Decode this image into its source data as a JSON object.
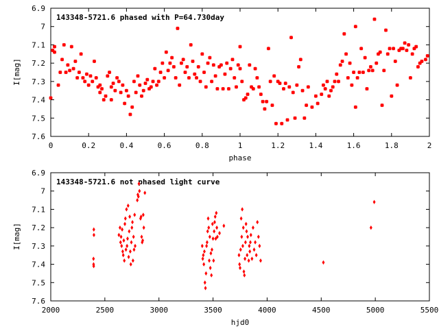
{
  "chart_data": [
    {
      "type": "scatter",
      "title": "143348-5721.6 phased with P=64.730day",
      "xlabel": "phase",
      "ylabel": "I[mag]",
      "xlim": [
        0,
        2
      ],
      "ylim": [
        6.9,
        7.6
      ],
      "y_inverted": true,
      "xticks": [
        "0",
        "0.2",
        "0.4",
        "0.6",
        "0.8",
        "1",
        "1.2",
        "1.4",
        "1.6",
        "1.8",
        "2"
      ],
      "yticks": [
        "6.9",
        "7",
        "7.1",
        "7.2",
        "7.3",
        "7.4",
        "7.5",
        "7.6"
      ],
      "marker_color": "#ff0000",
      "grid": false,
      "points": [
        [
          0.0,
          7.39
        ],
        [
          0.01,
          7.13
        ],
        [
          0.02,
          7.11
        ],
        [
          0.02,
          7.14
        ],
        [
          0.04,
          7.32
        ],
        [
          0.05,
          7.25
        ],
        [
          0.06,
          7.18
        ],
        [
          0.07,
          7.1
        ],
        [
          0.08,
          7.25
        ],
        [
          0.09,
          7.21
        ],
        [
          0.1,
          7.24
        ],
        [
          0.11,
          7.11
        ],
        [
          0.12,
          7.23
        ],
        [
          0.13,
          7.19
        ],
        [
          0.14,
          7.28
        ],
        [
          0.15,
          7.25
        ],
        [
          0.16,
          7.15
        ],
        [
          0.17,
          7.28
        ],
        [
          0.18,
          7.3
        ],
        [
          0.19,
          7.26
        ],
        [
          0.2,
          7.32
        ],
        [
          0.21,
          7.27
        ],
        [
          0.22,
          7.3
        ],
        [
          0.23,
          7.19
        ],
        [
          0.24,
          7.28
        ],
        [
          0.25,
          7.33
        ],
        [
          0.26,
          7.36
        ],
        [
          0.26,
          7.32
        ],
        [
          0.27,
          7.34
        ],
        [
          0.28,
          7.4
        ],
        [
          0.29,
          7.38
        ],
        [
          0.3,
          7.27
        ],
        [
          0.31,
          7.25
        ],
        [
          0.32,
          7.33
        ],
        [
          0.32,
          7.4
        ],
        [
          0.33,
          7.31
        ],
        [
          0.34,
          7.35
        ],
        [
          0.35,
          7.28
        ],
        [
          0.36,
          7.3
        ],
        [
          0.37,
          7.36
        ],
        [
          0.38,
          7.32
        ],
        [
          0.39,
          7.42
        ],
        [
          0.4,
          7.35
        ],
        [
          0.41,
          7.38
        ],
        [
          0.42,
          7.48
        ],
        [
          0.43,
          7.44
        ],
        [
          0.44,
          7.3
        ],
        [
          0.45,
          7.36
        ],
        [
          0.46,
          7.27
        ],
        [
          0.47,
          7.32
        ],
        [
          0.48,
          7.38
        ],
        [
          0.49,
          7.35
        ],
        [
          0.5,
          7.31
        ],
        [
          0.51,
          7.29
        ],
        [
          0.52,
          7.34
        ],
        [
          0.53,
          7.33
        ],
        [
          0.54,
          7.3
        ],
        [
          0.55,
          7.23
        ],
        [
          0.56,
          7.32
        ],
        [
          0.57,
          7.3
        ],
        [
          0.58,
          7.25
        ],
        [
          0.59,
          7.2
        ],
        [
          0.6,
          7.28
        ],
        [
          0.61,
          7.14
        ],
        [
          0.62,
          7.24
        ],
        [
          0.63,
          7.2
        ],
        [
          0.64,
          7.17
        ],
        [
          0.65,
          7.22
        ],
        [
          0.66,
          7.28
        ],
        [
          0.67,
          7.01
        ],
        [
          0.68,
          7.32
        ],
        [
          0.69,
          7.2
        ],
        [
          0.7,
          7.18
        ],
        [
          0.71,
          7.25
        ],
        [
          0.72,
          7.22
        ],
        [
          0.73,
          7.28
        ],
        [
          0.74,
          7.1
        ],
        [
          0.75,
          7.19
        ],
        [
          0.76,
          7.26
        ],
        [
          0.77,
          7.28
        ],
        [
          0.78,
          7.22
        ],
        [
          0.79,
          7.3
        ],
        [
          0.8,
          7.15
        ],
        [
          0.81,
          7.25
        ],
        [
          0.82,
          7.33
        ],
        [
          0.83,
          7.2
        ],
        [
          0.84,
          7.17
        ],
        [
          0.85,
          7.3
        ],
        [
          0.86,
          7.21
        ],
        [
          0.87,
          7.27
        ],
        [
          0.88,
          7.34
        ],
        [
          0.89,
          7.22
        ],
        [
          0.9,
          7.21
        ],
        [
          0.91,
          7.34
        ],
        [
          0.92,
          7.26
        ],
        [
          0.93,
          7.2
        ],
        [
          0.94,
          7.34
        ],
        [
          0.95,
          7.23
        ],
        [
          0.96,
          7.18
        ],
        [
          0.97,
          7.28
        ],
        [
          0.98,
          7.33
        ],
        [
          0.99,
          7.21
        ],
        [
          1.0,
          7.23
        ],
        [
          1.0,
          7.11
        ],
        [
          1.01,
          7.3
        ],
        [
          1.02,
          7.4
        ],
        [
          1.03,
          7.39
        ],
        [
          1.04,
          7.37
        ],
        [
          1.05,
          7.21
        ],
        [
          1.06,
          7.33
        ],
        [
          1.07,
          7.34
        ],
        [
          1.08,
          7.23
        ],
        [
          1.09,
          7.28
        ],
        [
          1.1,
          7.33
        ],
        [
          1.11,
          7.37
        ],
        [
          1.12,
          7.41
        ],
        [
          1.13,
          7.45
        ],
        [
          1.14,
          7.41
        ],
        [
          1.15,
          7.12
        ],
        [
          1.16,
          7.3
        ],
        [
          1.17,
          7.43
        ],
        [
          1.18,
          7.27
        ],
        [
          1.19,
          7.53
        ],
        [
          1.2,
          7.3
        ],
        [
          1.21,
          7.31
        ],
        [
          1.22,
          7.53
        ],
        [
          1.23,
          7.34
        ],
        [
          1.24,
          7.31
        ],
        [
          1.25,
          7.51
        ],
        [
          1.26,
          7.33
        ],
        [
          1.27,
          7.06
        ],
        [
          1.28,
          7.36
        ],
        [
          1.29,
          7.5
        ],
        [
          1.3,
          7.32
        ],
        [
          1.31,
          7.22
        ],
        [
          1.32,
          7.18
        ],
        [
          1.33,
          7.35
        ],
        [
          1.34,
          7.5
        ],
        [
          1.35,
          7.43
        ],
        [
          1.36,
          7.33
        ],
        [
          1.38,
          7.44
        ],
        [
          1.4,
          7.38
        ],
        [
          1.41,
          7.42
        ],
        [
          1.43,
          7.37
        ],
        [
          1.44,
          7.32
        ],
        [
          1.45,
          7.34
        ],
        [
          1.46,
          7.3
        ],
        [
          1.47,
          7.38
        ],
        [
          1.48,
          7.35
        ],
        [
          1.49,
          7.33
        ],
        [
          1.5,
          7.3
        ],
        [
          1.51,
          7.26
        ],
        [
          1.52,
          7.3
        ],
        [
          1.53,
          7.21
        ],
        [
          1.54,
          7.19
        ],
        [
          1.55,
          7.04
        ],
        [
          1.56,
          7.15
        ],
        [
          1.57,
          7.28
        ],
        [
          1.58,
          7.2
        ],
        [
          1.59,
          7.32
        ],
        [
          1.6,
          7.25
        ],
        [
          1.61,
          7.0
        ],
        [
          1.61,
          7.44
        ],
        [
          1.62,
          7.28
        ],
        [
          1.63,
          7.25
        ],
        [
          1.64,
          7.12
        ],
        [
          1.65,
          7.25
        ],
        [
          1.66,
          7.17
        ],
        [
          1.67,
          7.34
        ],
        [
          1.68,
          7.24
        ],
        [
          1.69,
          7.22
        ],
        [
          1.7,
          7.24
        ],
        [
          1.71,
          6.96
        ],
        [
          1.72,
          7.2
        ],
        [
          1.73,
          7.15
        ],
        [
          1.74,
          7.14
        ],
        [
          1.75,
          7.43
        ],
        [
          1.76,
          7.24
        ],
        [
          1.77,
          7.02
        ],
        [
          1.78,
          7.15
        ],
        [
          1.79,
          7.12
        ],
        [
          1.8,
          7.38
        ],
        [
          1.81,
          7.12
        ],
        [
          1.82,
          7.19
        ],
        [
          1.83,
          7.32
        ],
        [
          1.84,
          7.13
        ],
        [
          1.85,
          7.12
        ],
        [
          1.86,
          7.12
        ],
        [
          1.87,
          7.09
        ],
        [
          1.88,
          7.13
        ],
        [
          1.89,
          7.1
        ],
        [
          1.9,
          7.28
        ],
        [
          1.91,
          7.15
        ],
        [
          1.92,
          7.12
        ],
        [
          1.93,
          7.11
        ],
        [
          1.94,
          7.22
        ],
        [
          1.95,
          7.2
        ],
        [
          1.96,
          7.19
        ],
        [
          1.98,
          7.18
        ],
        [
          1.99,
          7.16
        ]
      ]
    },
    {
      "type": "scatter",
      "title": "143348-5721.6 not phased light curve",
      "xlabel": "hjd0",
      "ylabel": "I[mag]",
      "xlim": [
        2000,
        5500
      ],
      "ylim": [
        6.9,
        7.6
      ],
      "y_inverted": true,
      "xticks": [
        "2000",
        "2500",
        "3000",
        "3500",
        "4000",
        "4500",
        "5000",
        "5500"
      ],
      "yticks": [
        "6.9",
        "7",
        "7.1",
        "7.2",
        "7.3",
        "7.4",
        "7.5",
        "7.6"
      ],
      "marker_color": "#ff0000",
      "grid": false,
      "points": [
        [
          2395,
          7.37
        ],
        [
          2396,
          7.4
        ],
        [
          2398,
          7.21
        ],
        [
          2399,
          7.24
        ],
        [
          2397,
          7.41
        ],
        [
          2630,
          7.24
        ],
        [
          2640,
          7.2
        ],
        [
          2645,
          7.28
        ],
        [
          2650,
          7.25
        ],
        [
          2655,
          7.3
        ],
        [
          2660,
          7.21
        ],
        [
          2665,
          7.33
        ],
        [
          2670,
          7.35
        ],
        [
          2675,
          7.27
        ],
        [
          2680,
          7.38
        ],
        [
          2685,
          7.18
        ],
        [
          2690,
          7.15
        ],
        [
          2695,
          7.32
        ],
        [
          2700,
          7.1
        ],
        [
          2705,
          7.3
        ],
        [
          2710,
          7.26
        ],
        [
          2715,
          7.08
        ],
        [
          2720,
          7.36
        ],
        [
          2725,
          7.22
        ],
        [
          2730,
          7.14
        ],
        [
          2735,
          7.33
        ],
        [
          2740,
          7.4
        ],
        [
          2745,
          7.28
        ],
        [
          2750,
          7.2
        ],
        [
          2755,
          7.17
        ],
        [
          2760,
          7.38
        ],
        [
          2765,
          7.25
        ],
        [
          2770,
          7.32
        ],
        [
          2775,
          7.13
        ],
        [
          2780,
          7.3
        ],
        [
          2800,
          7.05
        ],
        [
          2805,
          7.02
        ],
        [
          2810,
          7.03
        ],
        [
          2815,
          6.96
        ],
        [
          2820,
          7.0
        ],
        [
          2830,
          7.15
        ],
        [
          2835,
          7.14
        ],
        [
          2840,
          7.25
        ],
        [
          2845,
          7.28
        ],
        [
          2850,
          7.27
        ],
        [
          2855,
          7.13
        ],
        [
          2860,
          7.2
        ],
        [
          2870,
          7.01
        ],
        [
          3400,
          7.3
        ],
        [
          3405,
          7.37
        ],
        [
          3410,
          7.35
        ],
        [
          3415,
          7.4
        ],
        [
          3420,
          7.33
        ],
        [
          3425,
          7.5
        ],
        [
          3430,
          7.53
        ],
        [
          3435,
          7.45
        ],
        [
          3440,
          7.3
        ],
        [
          3445,
          7.28
        ],
        [
          3450,
          7.22
        ],
        [
          3455,
          7.15
        ],
        [
          3460,
          7.2
        ],
        [
          3465,
          7.38
        ],
        [
          3470,
          7.25
        ],
        [
          3475,
          7.42
        ],
        [
          3480,
          7.34
        ],
        [
          3485,
          7.46
        ],
        [
          3490,
          7.32
        ],
        [
          3495,
          7.18
        ],
        [
          3500,
          7.26
        ],
        [
          3505,
          7.38
        ],
        [
          3510,
          7.22
        ],
        [
          3515,
          7.17
        ],
        [
          3520,
          7.14
        ],
        [
          3525,
          7.26
        ],
        [
          3530,
          7.12
        ],
        [
          3535,
          7.2
        ],
        [
          3540,
          7.25
        ],
        [
          3560,
          7.23
        ],
        [
          3600,
          7.19
        ],
        [
          3740,
          7.35
        ],
        [
          3745,
          7.4
        ],
        [
          3750,
          7.42
        ],
        [
          3755,
          7.32
        ],
        [
          3760,
          7.15
        ],
        [
          3765,
          7.25
        ],
        [
          3770,
          7.1
        ],
        [
          3775,
          7.3
        ],
        [
          3780,
          7.2
        ],
        [
          3785,
          7.44
        ],
        [
          3790,
          7.46
        ],
        [
          3795,
          7.37
        ],
        [
          3800,
          7.28
        ],
        [
          3805,
          7.18
        ],
        [
          3810,
          7.22
        ],
        [
          3815,
          7.35
        ],
        [
          3820,
          7.25
        ],
        [
          3830,
          7.38
        ],
        [
          3835,
          7.3
        ],
        [
          3840,
          7.33
        ],
        [
          3845,
          7.28
        ],
        [
          3850,
          7.24
        ],
        [
          3860,
          7.37
        ],
        [
          3870,
          7.2
        ],
        [
          3880,
          7.32
        ],
        [
          3890,
          7.28
        ],
        [
          3900,
          7.35
        ],
        [
          3910,
          7.17
        ],
        [
          3920,
          7.25
        ],
        [
          3930,
          7.3
        ],
        [
          3940,
          7.38
        ],
        [
          4520,
          7.39
        ],
        [
          4960,
          7.2
        ],
        [
          4990,
          7.06
        ]
      ]
    }
  ]
}
